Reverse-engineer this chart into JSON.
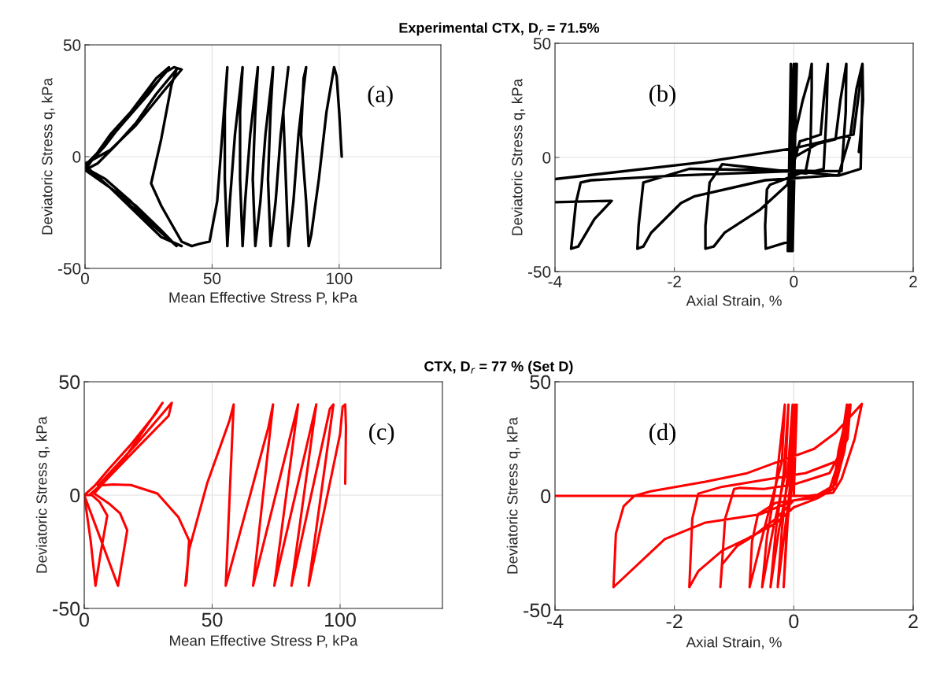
{
  "chart_data": [
    {
      "type": "line",
      "title": "Experimental CTX, D$_{r}$ = 71.5%",
      "xlabel": "Mean Effective Stress P, kPa",
      "ylabel": "Deviatoric Stress q, kPa",
      "annotations": [
        "(a)"
      ],
      "xlim": [
        0,
        140
      ],
      "xticks": [
        0,
        50,
        100
      ],
      "ylim": [
        -50,
        50
      ],
      "yticks": [
        -50,
        0,
        50
      ],
      "grid": true,
      "x": [
        101,
        100,
        99,
        98,
        95,
        92,
        89,
        88,
        87,
        85,
        86,
        87,
        84,
        82,
        80,
        79,
        78,
        80,
        77,
        75,
        73,
        72,
        73,
        74,
        71,
        69,
        67,
        66,
        67,
        68,
        65,
        63,
        62,
        61,
        61,
        62,
        59,
        57,
        56,
        55,
        55,
        56,
        54,
        52,
        49,
        45,
        42,
        38,
        34,
        30,
        26,
        30,
        34,
        36,
        28,
        20,
        12,
        5,
        0,
        10,
        20,
        30,
        36,
        28,
        18,
        8,
        0,
        8,
        18,
        28,
        33,
        25,
        15,
        6,
        0,
        12,
        24,
        34,
        38,
        30,
        20,
        10,
        3,
        0,
        10,
        22,
        32,
        35,
        38,
        30,
        20,
        10,
        2,
        0
      ],
      "series": [
        {
          "color": "#000000",
          "values": [
            0,
            20,
            36,
            40,
            20,
            -10,
            -35,
            -40,
            -20,
            10,
            35,
            40,
            10,
            -20,
            -40,
            -10,
            20,
            40,
            10,
            -20,
            -40,
            -10,
            20,
            40,
            10,
            -20,
            -40,
            -10,
            20,
            40,
            10,
            -20,
            -40,
            -10,
            20,
            40,
            10,
            -20,
            -40,
            -10,
            20,
            40,
            10,
            -20,
            -38,
            -39,
            -40,
            -38,
            -30,
            -22,
            -12,
            8,
            32,
            39,
            28,
            15,
            5,
            -3,
            -6,
            -14,
            -22,
            -33,
            -40,
            -32,
            -20,
            -10,
            -5,
            5,
            20,
            35,
            40,
            28,
            15,
            3,
            -4,
            -16,
            -28,
            -38,
            -40,
            -36,
            -25,
            -14,
            -8,
            -6,
            10,
            25,
            38,
            40,
            39,
            28,
            14,
            3,
            -2,
            -3
          ]
        }
      ]
    },
    {
      "type": "line",
      "xlabel": "Axial Strain, %",
      "ylabel": "Deviatoric Stress q, kPa",
      "annotations": [
        "(b)"
      ],
      "xlim": [
        -4,
        2
      ],
      "xticks": [
        -4,
        -2,
        0,
        2
      ],
      "ylim": [
        -50,
        50
      ],
      "yticks": [
        -50,
        0,
        50
      ],
      "grid": true,
      "x": [
        0,
        -0.05,
        -0.1,
        0,
        -0.08,
        0.03,
        -0.05,
        0.05,
        -0.02,
        0.02,
        0.15,
        0.27,
        0.3,
        0.3,
        0.28,
        0.2,
        -0.1,
        -0.4,
        -0.45,
        -0.48,
        -0.47,
        -0.1,
        -0.05,
        -0.08,
        0.1,
        0.45,
        0.5,
        0.57,
        0.55,
        0.5,
        0.2,
        -0.5,
        -1.2,
        -1.41,
        -1.48,
        -1.48,
        -1.34,
        -1.16,
        -0.57,
        -0.11,
        0,
        0.4,
        0.7,
        0.78,
        0.88,
        0.87,
        0.8,
        0.43,
        -1.75,
        -2.52,
        -2.6,
        -2.62,
        -2.52,
        -2.39,
        -1.89,
        -1.66,
        -0.48,
        0.75,
        0.95,
        1.05,
        1.15,
        1.15,
        1.12,
        0.75,
        0,
        -2,
        -3.4,
        -3.57,
        -3.65,
        -3.73,
        -3.61,
        -3.34,
        -3.05,
        -4,
        null,
        -4,
        -1.5,
        0,
        0.5,
        1.0,
        1.1,
        1.15,
        1.16,
        1.12,
        1.09
      ],
      "series": [
        {
          "color": "#000000",
          "values": [
            0,
            41,
            -41,
            41,
            -41,
            41,
            -41,
            41,
            -41,
            10,
            25,
            36,
            41,
            30,
            5,
            -6,
            -9,
            -12,
            -14,
            -30,
            -40,
            -37,
            -30,
            -10,
            7,
            10,
            25,
            41,
            20,
            -5,
            -7,
            -5,
            -3,
            -11,
            -30,
            -40,
            -39,
            -33,
            -23,
            -12,
            0,
            6,
            8,
            25,
            41,
            20,
            -6,
            -6,
            -5,
            -11,
            -30,
            -40,
            -39,
            -33,
            -20,
            -17,
            -10,
            -7.7,
            10,
            30,
            41,
            30,
            -5,
            -8,
            -6,
            -8,
            -10,
            -11,
            -20,
            -40,
            -39,
            -27,
            -19,
            -19.6,
            null,
            -9.5,
            -2,
            4,
            7,
            10,
            30,
            41,
            25,
            10,
            2.4
          ]
        }
      ]
    },
    {
      "type": "line",
      "title": "CTX, D$_{r}$ = 77 % (Set D)",
      "xlabel": "Mean Effective Stress P, kPa",
      "ylabel": "Deviatoric Stress q, kPa",
      "annotations": [
        "(c)"
      ],
      "xlim": [
        0,
        140
      ],
      "xticks": [
        0,
        50,
        100
      ],
      "ylim": [
        -50,
        50
      ],
      "yticks": [
        -50,
        0,
        50
      ],
      "grid": true,
      "x": [
        102,
        102.3,
        102,
        101,
        100,
        87.7,
        88,
        97.4,
        96,
        81,
        90.7,
        74.3,
        83.6,
        66,
        73.8,
        72,
        55.3,
        58.4,
        56.8,
        48,
        41,
        39.5,
        40,
        41,
        36.8,
        28.6,
        18.3,
        11.1,
        5.4,
        20,
        34.2,
        33,
        20,
        8,
        2,
        0,
        2.5,
        4.4,
        6.5,
        9,
        6,
        3,
        0,
        13.2,
        16.8,
        14,
        10,
        3.9,
        15,
        30.6,
        28,
        18,
        10,
        4,
        0
      ],
      "series": [
        {
          "color": "#ff0000",
          "values": [
            5,
            30,
            40,
            39,
            27,
            -40,
            -37,
            40,
            38,
            -40,
            40,
            -40,
            40,
            -40,
            40,
            30,
            -40,
            40,
            33,
            5,
            -24,
            -40,
            -38,
            -20,
            -9.7,
            0.7,
            4.4,
            4.7,
            4.2,
            22,
            40.7,
            35,
            20,
            6,
            0,
            0,
            -20,
            -40,
            -25,
            -9,
            -3,
            0,
            0,
            -40,
            -15.5,
            -8,
            -4,
            0.7,
            15,
            40.7,
            36,
            22,
            12,
            4,
            0
          ]
        }
      ]
    },
    {
      "type": "line",
      "xlabel": "Axial Strain, %",
      "ylabel": "Deviatoric Stress q, kPa",
      "annotations": [
        "(d)"
      ],
      "xlim": [
        -4,
        2
      ],
      "xticks": [
        -4,
        -2,
        0,
        2
      ],
      "ylim": [
        -50,
        50
      ],
      "yticks": [
        -50,
        0,
        50
      ],
      "grid": true,
      "x": [
        0,
        0.05,
        0,
        -0.1,
        -0.17,
        -0.12,
        -0.05,
        0.02,
        -0.03,
        -0.15,
        -0.27,
        -0.2,
        -0.1,
        -0.02,
        -0.07,
        -0.25,
        -0.39,
        -0.3,
        -0.17,
        -0.09,
        -0.14,
        -0.35,
        -0.53,
        -0.45,
        -0.3,
        -0.15,
        -0.2,
        -0.5,
        -0.74,
        -0.7,
        -0.6,
        -0.3,
        0.3,
        0.6,
        0.75,
        0.89,
        0.8,
        0.6,
        0,
        -0.5,
        -0.9,
        -1.0,
        -1.15,
        -1.23,
        -1.2,
        -0.95,
        -0.7,
        -0.3,
        0,
        0.4,
        0.7,
        0.85,
        0.95,
        0.9,
        0.7,
        0.2,
        -0.5,
        -1.2,
        -1.6,
        -1.7,
        -1.75,
        -1.6,
        -1.2,
        -0.8,
        -0.3,
        0,
        0.4,
        0.66,
        0.75,
        0.93,
        0.85,
        0.7,
        0.3,
        0,
        -0.57,
        -1.48,
        -2.16,
        -3.02,
        -2.98,
        -2.85,
        -2.67,
        -2.4,
        -1.48,
        -0.8,
        -0.3,
        0.34,
        0.7,
        1.14,
        1.02,
        0.8,
        0.66,
        0.25,
        -4
      ],
      "series": [
        {
          "color": "#ff0000",
          "values": [
            0,
            40,
            10,
            -10,
            -40,
            -15,
            10,
            40,
            10,
            -15,
            -40,
            -15,
            10,
            40,
            10,
            -15,
            -40,
            -15,
            10,
            40,
            10,
            -15,
            -40,
            -18,
            5,
            40,
            15,
            -15,
            -40,
            -20,
            -8,
            -3,
            -1,
            3,
            15,
            40,
            20,
            10,
            5,
            3,
            3.5,
            3,
            -10,
            -40,
            -30,
            -22,
            -18,
            -10,
            -2,
            0,
            5,
            20,
            40,
            25,
            15,
            10,
            7,
            4,
            1,
            -10,
            -40,
            -33,
            -24,
            -19,
            -12,
            -5,
            -1,
            3,
            20,
            40,
            25,
            5,
            -1,
            -2,
            -8.1,
            -11.7,
            -18.9,
            -40,
            -16.5,
            -4.5,
            0,
            2,
            6.2,
            9.8,
            14.6,
            20.6,
            27.7,
            40.3,
            25,
            7.4,
            1.4,
            0,
            0
          ]
        }
      ]
    }
  ]
}
